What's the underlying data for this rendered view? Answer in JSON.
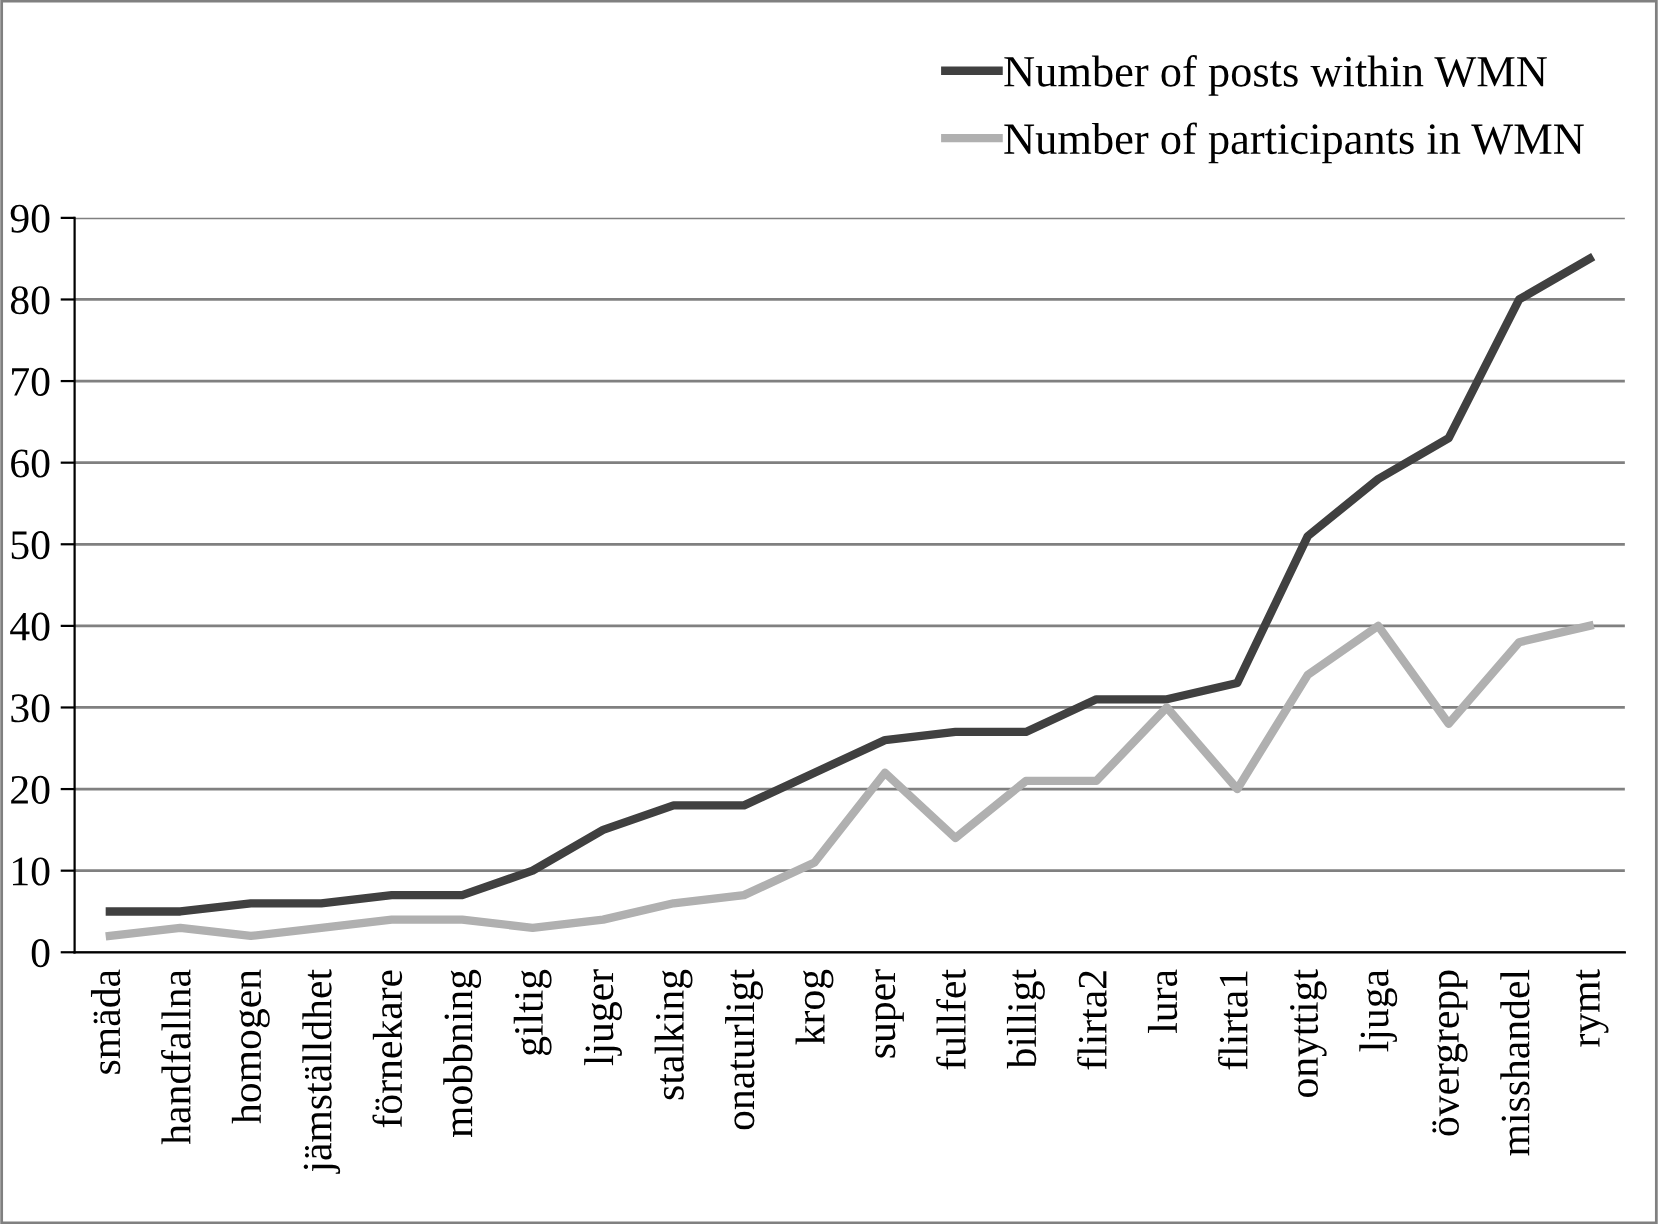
{
  "chart_data": {
    "type": "line",
    "categories": [
      "smäda",
      "handfallna",
      "homogen",
      "jämställdhet",
      "förnekare",
      "mobbning",
      "giltig",
      "ljuger",
      "stalking",
      "onaturligt",
      "krog",
      "super",
      "fullfet",
      "billigt",
      "flirta2",
      "lura",
      "flirta1",
      "onyttigt",
      "ljuga",
      "övergrepp",
      "misshandel",
      "rymt"
    ],
    "series": [
      {
        "name": "Number of posts within WMN",
        "color": "#404040",
        "values": [
          5,
          5,
          6,
          6,
          7,
          7,
          10,
          15,
          18,
          18,
          22,
          26,
          27,
          27,
          31,
          31,
          33,
          51,
          58,
          63,
          80,
          85
        ]
      },
      {
        "name": "Number of participants in WMN",
        "color": "#b0b0b0",
        "values": [
          2,
          3,
          2,
          3,
          4,
          4,
          3,
          4,
          6,
          7,
          11,
          22,
          14,
          21,
          21,
          30,
          20,
          34,
          40,
          28,
          38,
          40
        ]
      }
    ],
    "ylim": [
      0,
      90
    ],
    "yticks": [
      0,
      10,
      20,
      30,
      40,
      50,
      60,
      70,
      80,
      90
    ],
    "grid": "y",
    "legend": "top right",
    "marker": "none",
    "line_style": "solid"
  }
}
